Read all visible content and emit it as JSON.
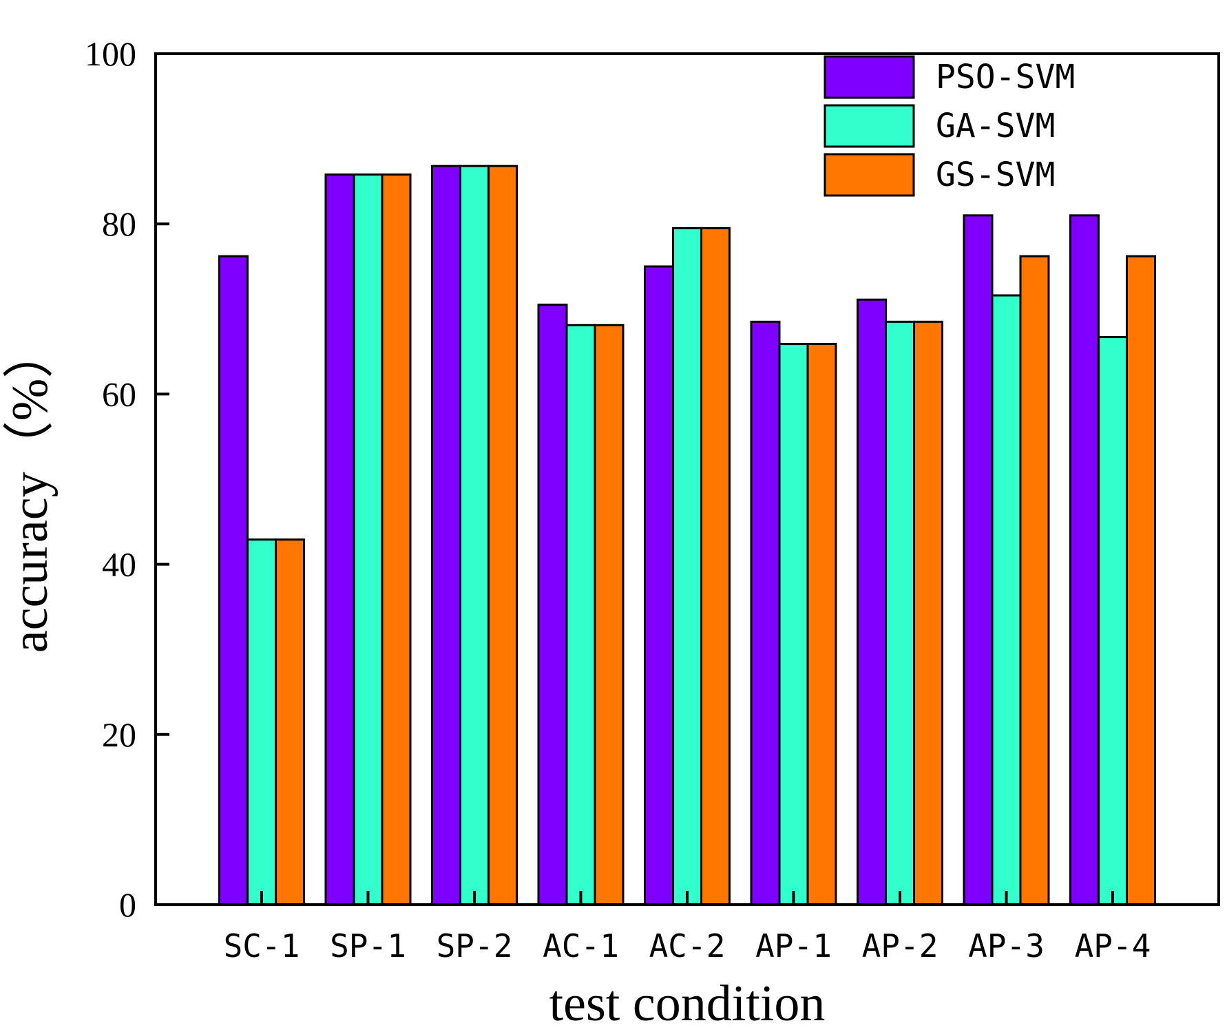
{
  "chart_data": {
    "type": "bar",
    "categories": [
      "SC-1",
      "SP-1",
      "SP-2",
      "AC-1",
      "AC-2",
      "AP-1",
      "AP-2",
      "AP-3",
      "AP-4"
    ],
    "series": [
      {
        "name": "PSO-SVM",
        "color": "#7f00ff",
        "values": [
          76.2,
          85.8,
          86.8,
          70.5,
          75.0,
          68.5,
          71.1,
          81.0,
          81.0
        ]
      },
      {
        "name": "GA-SVM",
        "color": "#33ffcc",
        "values": [
          42.9,
          85.8,
          86.8,
          68.1,
          79.5,
          65.9,
          68.5,
          71.6,
          66.7
        ]
      },
      {
        "name": "GS-SVM",
        "color": "#ff7700",
        "values": [
          42.9,
          85.8,
          86.8,
          68.1,
          79.5,
          65.9,
          68.5,
          76.2,
          76.2
        ]
      }
    ],
    "yticks": [
      "0",
      "20",
      "40",
      "60",
      "80",
      "100"
    ],
    "ylim": [
      0,
      100
    ],
    "xlabel": "test condition",
    "ylabel": "accuracy（%）",
    "legend_position": "top-right",
    "grid": false
  }
}
